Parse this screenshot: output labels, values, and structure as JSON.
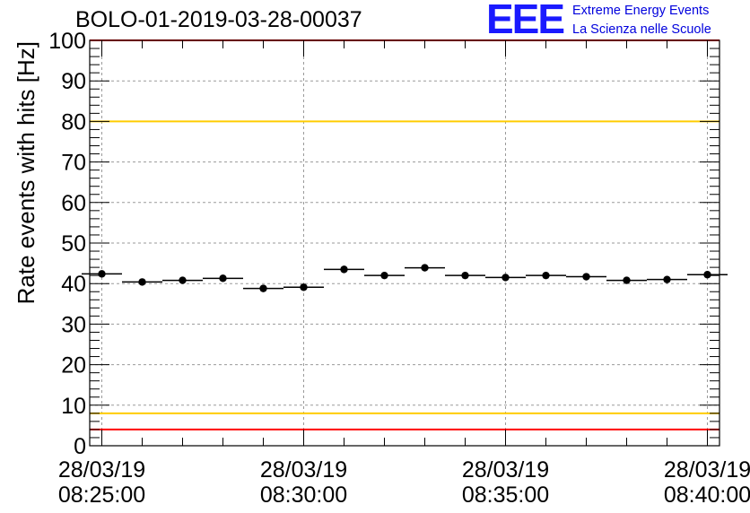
{
  "header": {
    "run_title": "BOLO-01-2019-03-28-00037"
  },
  "logo": {
    "mark": "EEE",
    "line1": "Extreme Energy Events",
    "line2": "La Scienza nelle Scuole",
    "color": "#1a1aff"
  },
  "chart_data": {
    "type": "scatter",
    "title": "BOLO-01-2019-03-28-00037",
    "xlabel": "",
    "ylabel": "Rate events with hits [Hz]",
    "ylim": [
      0,
      100
    ],
    "y_major_ticks": [
      0,
      10,
      20,
      30,
      40,
      50,
      60,
      70,
      80,
      90,
      100
    ],
    "x_unit": "minutes after 08:25:00",
    "xlim": [
      -0.3,
      15.3
    ],
    "x_major_ticks": [
      {
        "x": 0,
        "date": "28/03/19",
        "time": "08:25:00"
      },
      {
        "x": 5,
        "date": "28/03/19",
        "time": "08:30:00"
      },
      {
        "x": 10,
        "date": "28/03/19",
        "time": "08:35:00"
      },
      {
        "x": 15,
        "date": "28/03/19",
        "time": "08:40:00"
      }
    ],
    "grid": true,
    "x_half_width": 0.5,
    "series": [
      {
        "name": "rate",
        "x": [
          0,
          1,
          2,
          3,
          4,
          5,
          6,
          7,
          8,
          9,
          10,
          11,
          12,
          13,
          14,
          15
        ],
        "values": [
          42.4,
          40.4,
          40.8,
          41.3,
          38.8,
          39.1,
          43.5,
          42.0,
          43.9,
          42.0,
          41.5,
          42.0,
          41.7,
          40.8,
          41.0,
          42.2
        ]
      }
    ],
    "reference_lines": [
      {
        "y": 100,
        "color": "#ff0000"
      },
      {
        "y": 80,
        "color": "#ffcc00"
      },
      {
        "y": 8,
        "color": "#ffcc00"
      },
      {
        "y": 4,
        "color": "#ff0000"
      }
    ]
  }
}
